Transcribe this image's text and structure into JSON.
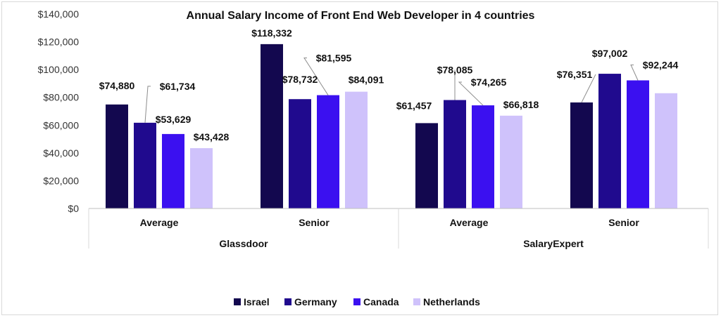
{
  "chart_data": {
    "type": "bar",
    "title": "Annual Salary Income of Front End Web Developer in 4 countries",
    "xlabel": "",
    "ylabel": "",
    "ylim": [
      0,
      140000
    ],
    "yticks": [
      0,
      20000,
      40000,
      60000,
      80000,
      100000,
      120000,
      140000
    ],
    "ytick_labels": [
      "$0",
      "$20,000",
      "$40,000",
      "$60,000",
      "$80,000",
      "$100,000",
      "$120,000",
      "$140,000"
    ],
    "groups": [
      {
        "label": "Glassdoor",
        "categories": [
          "Average",
          "Senior"
        ]
      },
      {
        "label": "SalaryExpert",
        "categories": [
          "Average",
          "Senior"
        ]
      }
    ],
    "categories": [
      "Average",
      "Senior",
      "Average",
      "Senior"
    ],
    "series": [
      {
        "name": "Israel",
        "color": "#13084f",
        "values": [
          74880,
          118332,
          61457,
          76351
        ]
      },
      {
        "name": "Germany",
        "color": "#200a8e",
        "values": [
          61734,
          78732,
          78085,
          97002
        ]
      },
      {
        "name": "Canada",
        "color": "#3b10f0",
        "values": [
          53629,
          81595,
          74265,
          92244
        ]
      },
      {
        "name": "Netherlands",
        "color": "#cfc2fb",
        "values": [
          43428,
          84091,
          66818,
          83000
        ]
      }
    ],
    "data_labels": [
      [
        "$74,880",
        "$118,332",
        "$61,457",
        "$76,351"
      ],
      [
        "$61,734",
        "$78,732",
        "$78,085",
        "$97,002"
      ],
      [
        "$53,629",
        "$81,595",
        "$74,265",
        "$92,244"
      ],
      [
        "$43,428",
        "$84,091",
        "$66,818",
        ""
      ]
    ],
    "grid": false,
    "legend_position": "bottom"
  }
}
